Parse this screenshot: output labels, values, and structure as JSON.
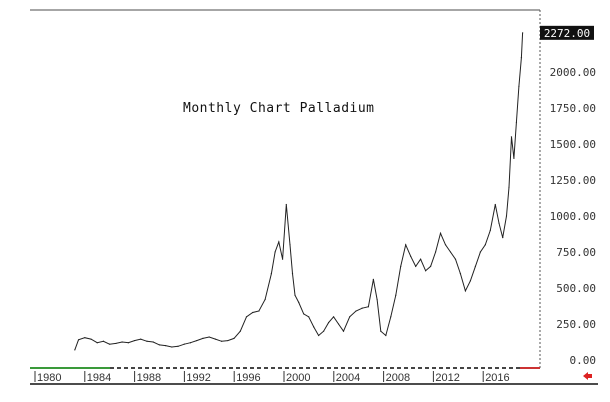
{
  "chart_data": {
    "type": "line",
    "title": "Monthly Chart Palladium",
    "xlabel": "",
    "ylabel": "",
    "xlim": [
      1980,
      2020.5
    ],
    "ylim": [
      0,
      2320
    ],
    "grid": false,
    "last_value_label": "2272.00",
    "x_ticks": [
      "1980",
      "1984",
      "1988",
      "1992",
      "1996",
      "2000",
      "2004",
      "2008",
      "2012",
      "2016"
    ],
    "y_ticks": [
      "0.00",
      "250.00",
      "500.00",
      "750.00",
      "1000.00",
      "1250.00",
      "1500.00",
      "1750.00",
      "2000.00"
    ],
    "series": [
      {
        "name": "Palladium",
        "x": [
          1983.2,
          1983.5,
          1984,
          1984.5,
          1985,
          1985.5,
          1986,
          1986.5,
          1987,
          1987.5,
          1988,
          1988.5,
          1989,
          1989.5,
          1990,
          1990.5,
          1991,
          1991.5,
          1992,
          1992.5,
          1993,
          1993.5,
          1994,
          1994.5,
          1995,
          1995.5,
          1996,
          1996.5,
          1997,
          1997.5,
          1998,
          1998.5,
          1999,
          1999.3,
          1999.6,
          1999.9,
          2000.2,
          2000.5,
          2000.7,
          2000.9,
          2001.2,
          2001.6,
          2002,
          2002.4,
          2002.8,
          2003.2,
          2003.6,
          2004,
          2004.4,
          2004.8,
          2005.3,
          2005.8,
          2006.3,
          2006.8,
          2007.2,
          2007.5,
          2007.8,
          2008.2,
          2008.6,
          2009,
          2009.4,
          2009.8,
          2010.2,
          2010.6,
          2011,
          2011.4,
          2011.8,
          2012.2,
          2012.6,
          2013,
          2013.4,
          2013.8,
          2014.2,
          2014.6,
          2015,
          2015.4,
          2015.8,
          2016.2,
          2016.6,
          2017,
          2017.3,
          2017.6,
          2017.9,
          2018.1,
          2018.3,
          2018.5,
          2018.7,
          2018.9,
          2019.1,
          2019.2
        ],
        "values": [
          70,
          140,
          155,
          145,
          120,
          130,
          110,
          115,
          125,
          120,
          135,
          145,
          130,
          125,
          105,
          100,
          90,
          95,
          110,
          120,
          135,
          150,
          160,
          145,
          130,
          135,
          150,
          200,
          300,
          330,
          340,
          420,
          600,
          750,
          820,
          700,
          1080,
          800,
          600,
          450,
          400,
          320,
          300,
          230,
          170,
          200,
          260,
          300,
          250,
          200,
          300,
          340,
          360,
          370,
          560,
          420,
          200,
          170,
          300,
          450,
          650,
          800,
          720,
          650,
          700,
          620,
          650,
          750,
          880,
          800,
          750,
          700,
          600,
          480,
          550,
          650,
          750,
          800,
          900,
          1080,
          950,
          850,
          1000,
          1200,
          1550,
          1400,
          1650,
          1900,
          2100,
          2272
        ]
      }
    ]
  }
}
